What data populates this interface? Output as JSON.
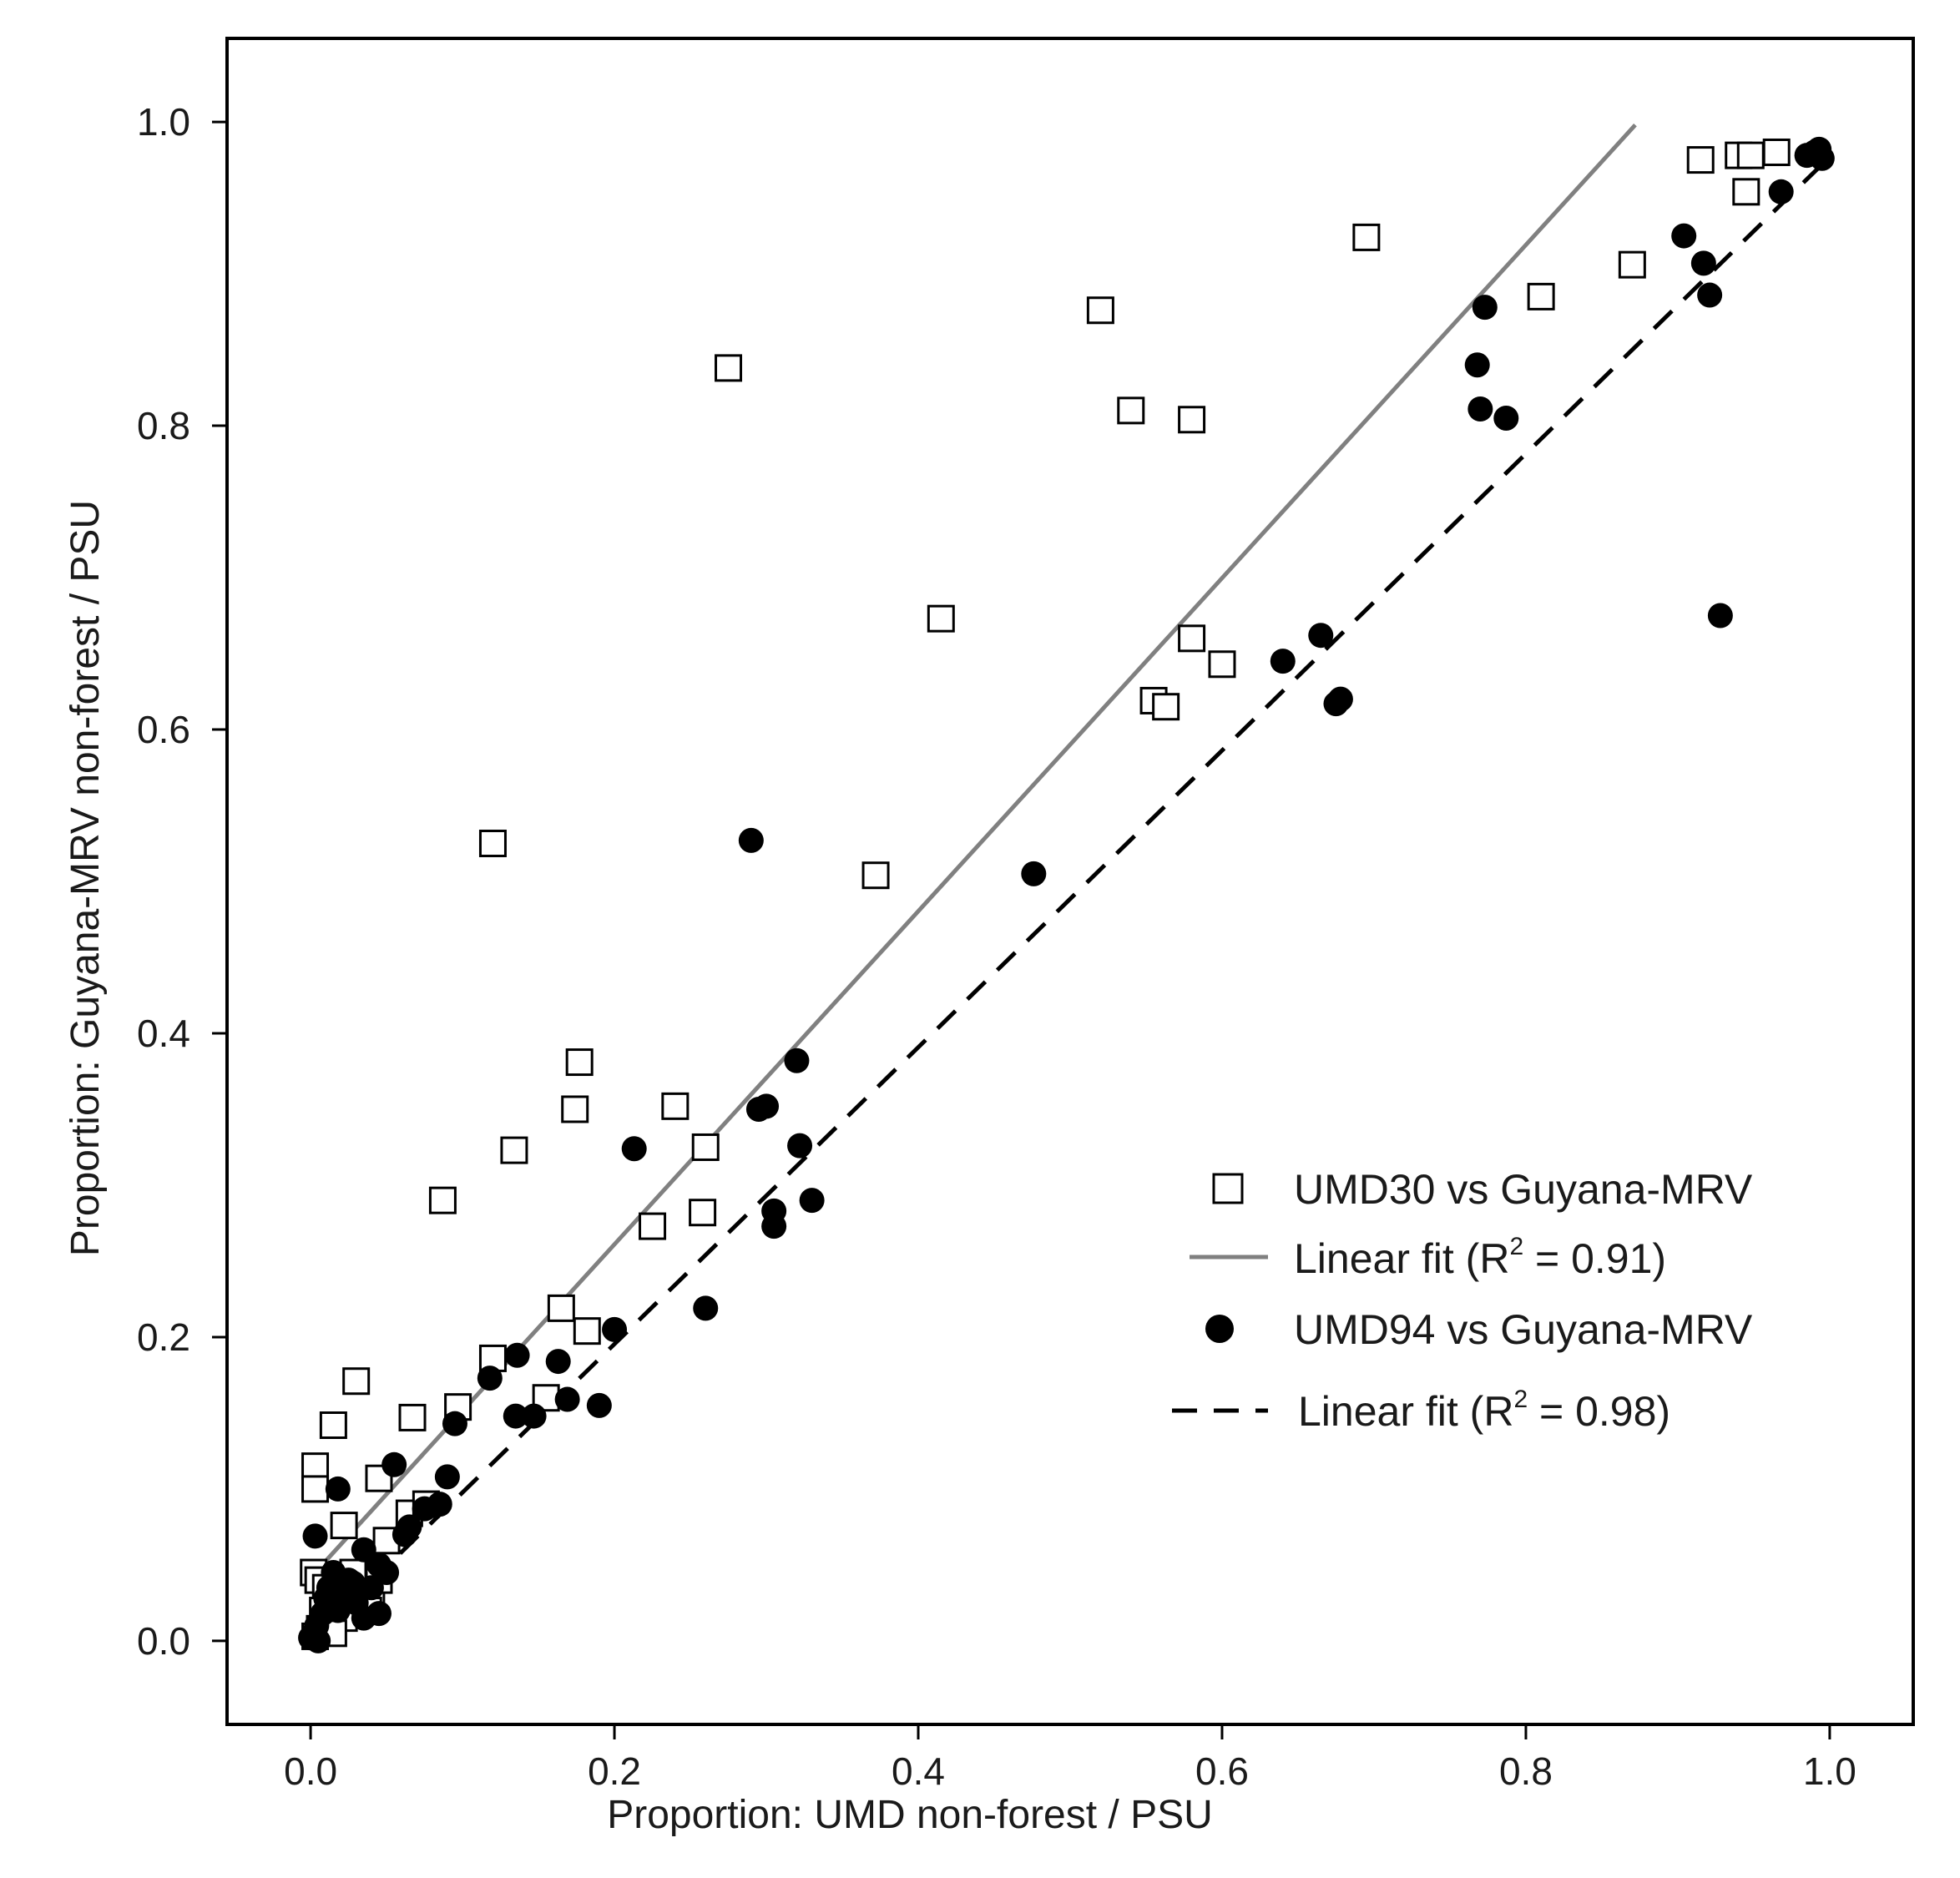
{
  "chart_data": {
    "type": "scatter",
    "title": "",
    "xlabel": "Proportion: UMD non-forest / PSU",
    "ylabel": "Proportion: Guyana-MRV non-forest / PSU",
    "xlim": [
      -0.055,
      1.055
    ],
    "ylim": [
      -0.055,
      1.055
    ],
    "xticks": [
      0.0,
      0.2,
      0.4,
      0.6,
      0.8,
      1.0
    ],
    "yticks": [
      0.0,
      0.2,
      0.4,
      0.6,
      0.8,
      1.0
    ],
    "xtick_labels": [
      "0.0",
      "0.2",
      "0.4",
      "0.6",
      "0.8",
      "1.0"
    ],
    "ytick_labels": [
      "0.0",
      "0.2",
      "0.4",
      "0.6",
      "0.8",
      "1.0"
    ],
    "grid": false,
    "legend_position": "lower-right",
    "legend": [
      {
        "label": "UMD30 vs Guyana-MRV",
        "marker": "open-square",
        "r2_sup": ""
      },
      {
        "label": "Linear fit (R",
        "sup": "2",
        "label_tail": " = 0.91)",
        "style": "solid-gray"
      },
      {
        "label": "UMD94 vs Guyana-MRV",
        "marker": "filled-circle"
      },
      {
        "label": "Linear fit (R",
        "sup": "2",
        "label_tail": " = 0.98)",
        "style": "dashed-black"
      }
    ],
    "series": [
      {
        "name": "UMD30 vs Guyana-MRV",
        "marker": "square",
        "color": "#000000",
        "points": [
          [
            0.275,
            0.838
          ],
          [
            0.52,
            0.876
          ],
          [
            0.54,
            0.81
          ],
          [
            0.58,
            0.804
          ],
          [
            0.695,
            0.924
          ],
          [
            0.415,
            0.673
          ],
          [
            0.58,
            0.66
          ],
          [
            0.6,
            0.643
          ],
          [
            0.555,
            0.619
          ],
          [
            0.563,
            0.615
          ],
          [
            0.12,
            0.525
          ],
          [
            0.372,
            0.504
          ],
          [
            0.177,
            0.381
          ],
          [
            0.174,
            0.35
          ],
          [
            0.24,
            0.352
          ],
          [
            0.134,
            0.323
          ],
          [
            0.26,
            0.325
          ],
          [
            0.087,
            0.29
          ],
          [
            0.258,
            0.282
          ],
          [
            0.225,
            0.273
          ],
          [
            0.165,
            0.219
          ],
          [
            0.182,
            0.204
          ],
          [
            0.12,
            0.186
          ],
          [
            0.03,
            0.171
          ],
          [
            0.097,
            0.154
          ],
          [
            0.155,
            0.16
          ],
          [
            0.067,
            0.147
          ],
          [
            0.015,
            0.142
          ],
          [
            0.003,
            0.115
          ],
          [
            0.045,
            0.107
          ],
          [
            0.003,
            0.1
          ],
          [
            0.022,
            0.076
          ],
          [
            0.05,
            0.066
          ],
          [
            0.065,
            0.084
          ],
          [
            0.076,
            0.09
          ],
          [
            0.81,
            0.885
          ],
          [
            0.87,
            0.906
          ],
          [
            0.915,
            0.975
          ],
          [
            0.94,
            0.978
          ],
          [
            0.948,
            0.978
          ],
          [
            0.965,
            0.98
          ],
          [
            0.945,
            0.954
          ],
          [
            0.002,
            0.045
          ],
          [
            0.005,
            0.04
          ],
          [
            0.01,
            0.035
          ],
          [
            0.015,
            0.03
          ],
          [
            0.02,
            0.025
          ],
          [
            0.025,
            0.02
          ],
          [
            0.03,
            0.028
          ],
          [
            0.035,
            0.038
          ],
          [
            0.04,
            0.03
          ],
          [
            0.008,
            0.02
          ],
          [
            0.012,
            0.012
          ],
          [
            0.018,
            0.042
          ],
          [
            0.028,
            0.045
          ],
          [
            0.006,
            0.008
          ],
          [
            0.045,
            0.04
          ],
          [
            0.003,
            0.003
          ],
          [
            0.022,
            0.015
          ],
          [
            0.038,
            0.02
          ],
          [
            0.015,
            0.005
          ]
        ]
      },
      {
        "name": "UMD94 vs Guyana-MRV",
        "marker": "circle",
        "color": "#000000",
        "points": [
          [
            0.29,
            0.527
          ],
          [
            0.476,
            0.505
          ],
          [
            0.32,
            0.382
          ],
          [
            0.295,
            0.35
          ],
          [
            0.3,
            0.352
          ],
          [
            0.213,
            0.324
          ],
          [
            0.322,
            0.326
          ],
          [
            0.33,
            0.29
          ],
          [
            0.305,
            0.283
          ],
          [
            0.305,
            0.273
          ],
          [
            0.26,
            0.219
          ],
          [
            0.2,
            0.205
          ],
          [
            0.136,
            0.188
          ],
          [
            0.163,
            0.184
          ],
          [
            0.118,
            0.173
          ],
          [
            0.169,
            0.159
          ],
          [
            0.19,
            0.155
          ],
          [
            0.135,
            0.148
          ],
          [
            0.147,
            0.148
          ],
          [
            0.095,
            0.143
          ],
          [
            0.055,
            0.116
          ],
          [
            0.09,
            0.108
          ],
          [
            0.018,
            0.1
          ],
          [
            0.085,
            0.09
          ],
          [
            0.075,
            0.087
          ],
          [
            0.065,
            0.075
          ],
          [
            0.062,
            0.07
          ],
          [
            0.003,
            0.069
          ],
          [
            0.045,
            0.05
          ],
          [
            0.035,
            0.06
          ],
          [
            0.64,
            0.645
          ],
          [
            0.665,
            0.662
          ],
          [
            0.675,
            0.617
          ],
          [
            0.678,
            0.62
          ],
          [
            0.768,
            0.84
          ],
          [
            0.77,
            0.811
          ],
          [
            0.773,
            0.878
          ],
          [
            0.787,
            0.805
          ],
          [
            0.904,
            0.925
          ],
          [
            0.917,
            0.907
          ],
          [
            0.921,
            0.886
          ],
          [
            0.928,
            0.675
          ],
          [
            0.968,
            0.954
          ],
          [
            0.985,
            0.978
          ],
          [
            0.99,
            0.98
          ],
          [
            0.993,
            0.982
          ],
          [
            0.995,
            0.976
          ],
          [
            0.002,
            0.005
          ],
          [
            0.004,
            0.01
          ],
          [
            0.008,
            0.018
          ],
          [
            0.01,
            0.028
          ],
          [
            0.012,
            0.035
          ],
          [
            0.018,
            0.02
          ],
          [
            0.022,
            0.03
          ],
          [
            0.025,
            0.04
          ],
          [
            0.03,
            0.025
          ],
          [
            0.035,
            0.015
          ],
          [
            0.04,
            0.035
          ],
          [
            0.045,
            0.018
          ],
          [
            0.005,
            0.0
          ],
          [
            0.015,
            0.045
          ],
          [
            0.028,
            0.038
          ],
          [
            0.05,
            0.045
          ],
          [
            0.0,
            0.002
          ]
        ]
      }
    ],
    "fits": [
      {
        "name": "Linear fit UMD30",
        "x": [
          0.003,
          0.872
        ],
        "y": [
          0.045,
          0.998
        ],
        "style": "solid",
        "color": "#808080"
      },
      {
        "name": "Linear fit UMD94",
        "x": [
          0.0,
          0.998
        ],
        "y": [
          0.0,
          0.975
        ],
        "style": "dashed",
        "color": "#000000"
      }
    ]
  }
}
